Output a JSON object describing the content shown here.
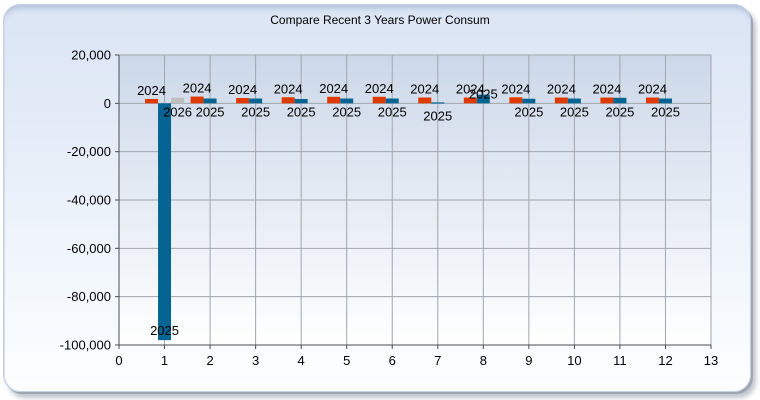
{
  "chart": {
    "frame_style": "embossed-rounded-panel",
    "accent_colors": {
      "panel_top": "#dbe5f4",
      "panel_bottom": "#fdfeff",
      "plot_top": "#ccd8e9",
      "plot_bottom": "#ffffff",
      "gridline": "#a0a6ad",
      "axis": "#4d4d4d",
      "text": "#000000"
    }
  },
  "chart_data": {
    "type": "bar",
    "title": "Compare Recent 3 Years Power Consum",
    "xlabel": "",
    "ylabel": "",
    "categories": [
      1,
      2,
      3,
      4,
      5,
      6,
      7,
      8,
      9,
      10,
      11,
      12
    ],
    "series": [
      {
        "name": "2024",
        "color": "#DF3A02",
        "values": [
          1800,
          2800,
          2200,
          2500,
          2700,
          2700,
          2400,
          2400,
          2500,
          2400,
          2400,
          2400
        ]
      },
      {
        "name": "2025",
        "color": "#056492",
        "values": [
          -98000,
          2000,
          2000,
          1800,
          2000,
          2000,
          400,
          3600,
          1900,
          2000,
          2300,
          2000
        ]
      },
      {
        "name": "2026",
        "color": "#BFBFBF",
        "values": [
          2300,
          null,
          null,
          null,
          null,
          null,
          null,
          null,
          null,
          null,
          null,
          null
        ]
      }
    ],
    "point_labels": "series-name-on-each-bar",
    "legend": "none",
    "grid": true,
    "xlim": [
      0,
      13
    ],
    "ylim": [
      -100000,
      20000
    ],
    "x_ticks": [
      0,
      1,
      2,
      3,
      4,
      5,
      6,
      7,
      8,
      9,
      10,
      11,
      12,
      13
    ],
    "y_ticks": [
      20000,
      0,
      -20000,
      -40000,
      -60000,
      -80000,
      -100000
    ]
  }
}
